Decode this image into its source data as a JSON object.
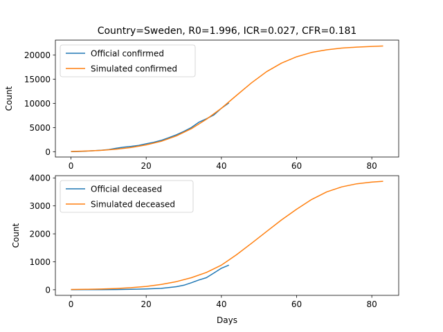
{
  "chart_data": [
    {
      "type": "line",
      "title": "Country=Sweden, R0=1.996, ICR=0.027, CFR=0.181",
      "xlabel": "",
      "ylabel": "Count",
      "xlim": [
        -4.15,
        87.15
      ],
      "ylim": [
        -1100,
        23100
      ],
      "xticks": [
        0,
        20,
        40,
        60,
        80
      ],
      "yticks": [
        0,
        5000,
        10000,
        15000,
        20000
      ],
      "legend_position": "upper-left",
      "series": [
        {
          "name": "Official confirmed",
          "color": "#1f77b4",
          "x": [
            0,
            2,
            4,
            6,
            8,
            10,
            12,
            14,
            16,
            18,
            20,
            22,
            24,
            26,
            28,
            30,
            32,
            34,
            36,
            38,
            40,
            42
          ],
          "y": [
            0,
            50,
            120,
            200,
            300,
            450,
            700,
            950,
            1100,
            1300,
            1650,
            1950,
            2350,
            2900,
            3500,
            4200,
            5000,
            6100,
            6800,
            7600,
            9000,
            10100
          ]
        },
        {
          "name": "Simulated confirmed",
          "color": "#ff7f0e",
          "x": [
            0,
            4,
            8,
            12,
            16,
            20,
            24,
            28,
            32,
            36,
            40,
            44,
            48,
            52,
            56,
            60,
            64,
            68,
            72,
            76,
            80,
            83
          ],
          "y": [
            40,
            130,
            280,
            510,
            860,
            1400,
            2150,
            3250,
            4750,
            6700,
            9000,
            11650,
            14250,
            16550,
            18350,
            19650,
            20550,
            21100,
            21450,
            21650,
            21800,
            21880
          ]
        }
      ]
    },
    {
      "type": "line",
      "title": "",
      "xlabel": "Days",
      "ylabel": "Count",
      "xlim": [
        -4.15,
        87.15
      ],
      "ylim": [
        -200,
        4080
      ],
      "xticks": [
        0,
        20,
        40,
        60,
        80
      ],
      "yticks": [
        0,
        1000,
        2000,
        3000,
        4000
      ],
      "legend_position": "upper-left",
      "series": [
        {
          "name": "Official deceased",
          "color": "#1f77b4",
          "x": [
            0,
            4,
            8,
            12,
            16,
            20,
            24,
            26,
            28,
            30,
            32,
            34,
            36,
            38,
            40,
            42
          ],
          "y": [
            0,
            2,
            5,
            8,
            15,
            30,
            50,
            80,
            110,
            160,
            250,
            350,
            430,
            600,
            770,
            880
          ]
        },
        {
          "name": "Simulated deceased",
          "color": "#ff7f0e",
          "x": [
            0,
            4,
            8,
            12,
            16,
            20,
            24,
            28,
            32,
            36,
            40,
            44,
            48,
            52,
            56,
            60,
            64,
            68,
            72,
            76,
            80,
            83
          ],
          "y": [
            10,
            15,
            25,
            45,
            75,
            120,
            190,
            290,
            430,
            620,
            880,
            1250,
            1660,
            2080,
            2500,
            2880,
            3230,
            3500,
            3680,
            3790,
            3850,
            3880
          ]
        }
      ]
    }
  ]
}
